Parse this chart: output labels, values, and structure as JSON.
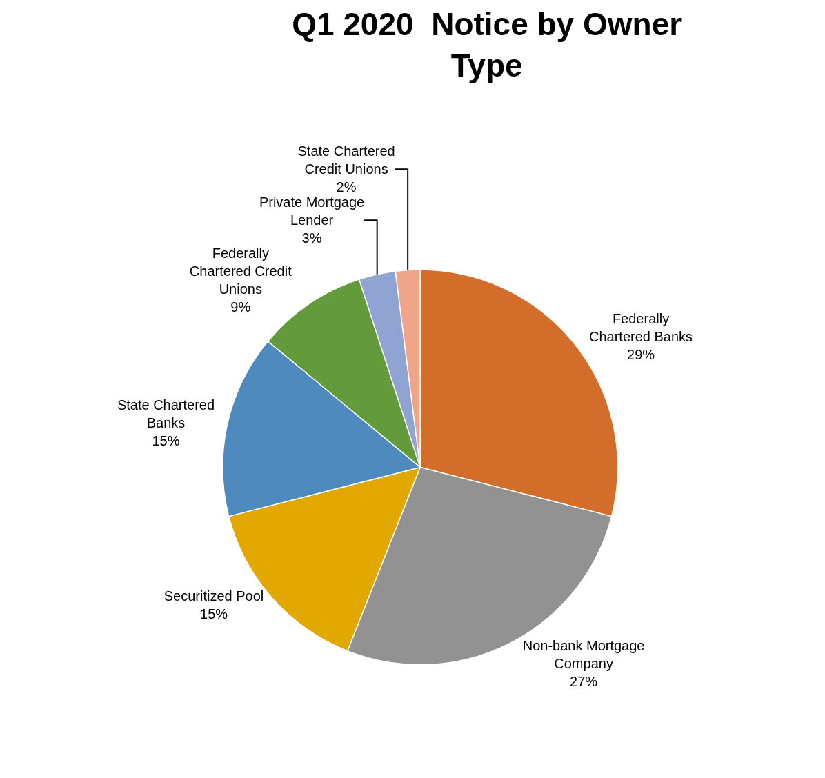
{
  "chart_data": {
    "type": "pie",
    "title": "Q1 2020  Notice by Owner Type",
    "categories": [
      "Federally Chartered Banks",
      "Non-bank Mortgage Company",
      "Securitized Pool",
      "State Chartered Banks",
      "Federally Chartered Credit Unions",
      "Private Mortgage Lender",
      "State Chartered Credit Unions"
    ],
    "values": [
      29,
      27,
      15,
      15,
      9,
      3,
      2
    ],
    "value_labels": [
      "29%",
      "27%",
      "15%",
      "15%",
      "9%",
      "3%",
      "2%"
    ],
    "colors": [
      "#d26e2a",
      "#929292",
      "#e2a800",
      "#4f8abe",
      "#639a3c",
      "#90a4d4",
      "#f0a58a"
    ],
    "legend": false
  }
}
